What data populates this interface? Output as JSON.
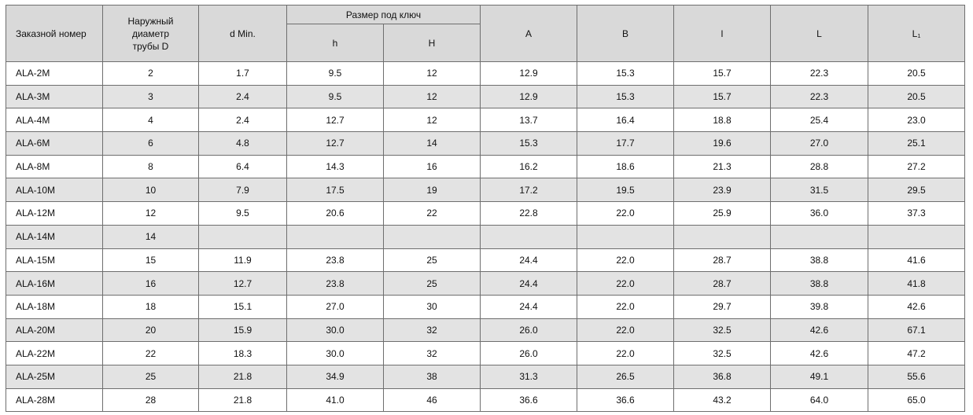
{
  "table": {
    "header": {
      "cells": [
        "Заказной номер",
        "Наружный диаметр трубы D",
        "d Min.",
        "A",
        "B",
        "l",
        "L",
        "L₁"
      ],
      "group": "Размер под ключ",
      "sub": [
        "h",
        "H"
      ]
    },
    "rows": [
      [
        "ALA-2M",
        "2",
        "1.7",
        "9.5",
        "12",
        "12.9",
        "15.3",
        "15.7",
        "22.3",
        "20.5"
      ],
      [
        "ALA-3M",
        "3",
        "2.4",
        "9.5",
        "12",
        "12.9",
        "15.3",
        "15.7",
        "22.3",
        "20.5"
      ],
      [
        "ALA-4M",
        "4",
        "2.4",
        "12.7",
        "12",
        "13.7",
        "16.4",
        "18.8",
        "25.4",
        "23.0"
      ],
      [
        "ALA-6M",
        "6",
        "4.8",
        "12.7",
        "14",
        "15.3",
        "17.7",
        "19.6",
        "27.0",
        "25.1"
      ],
      [
        "ALA-8M",
        "8",
        "6.4",
        "14.3",
        "16",
        "16.2",
        "18.6",
        "21.3",
        "28.8",
        "27.2"
      ],
      [
        "ALA-10M",
        "10",
        "7.9",
        "17.5",
        "19",
        "17.2",
        "19.5",
        "23.9",
        "31.5",
        "29.5"
      ],
      [
        "ALA-12M",
        "12",
        "9.5",
        "20.6",
        "22",
        "22.8",
        "22.0",
        "25.9",
        "36.0",
        "37.3"
      ],
      [
        "ALA-14M",
        "14",
        null,
        null,
        null,
        null,
        null,
        null,
        null,
        null
      ],
      [
        "ALA-15M",
        "15",
        "11.9",
        "23.8",
        "25",
        "24.4",
        "22.0",
        "28.7",
        "38.8",
        "41.6"
      ],
      [
        "ALA-16M",
        "16",
        "12.7",
        "23.8",
        "25",
        "24.4",
        "22.0",
        "28.7",
        "38.8",
        "41.8"
      ],
      [
        "ALA-18M",
        "18",
        "15.1",
        "27.0",
        "30",
        "24.4",
        "22.0",
        "29.7",
        "39.8",
        "42.6"
      ],
      [
        "ALA-20M",
        "20",
        "15.9",
        "30.0",
        "32",
        "26.0",
        "22.0",
        "32.5",
        "42.6",
        "67.1"
      ],
      [
        "ALA-22M",
        "22",
        "18.3",
        "30.0",
        "32",
        "26.0",
        "22.0",
        "32.5",
        "42.6",
        "47.2"
      ],
      [
        "ALA-25M",
        "25",
        "21.8",
        "34.9",
        "38",
        "31.3",
        "26.5",
        "36.8",
        "49.1",
        "55.6"
      ],
      [
        "ALA-28M",
        "28",
        "21.8",
        "41.0",
        "46",
        "36.6",
        "36.6",
        "43.2",
        "64.0",
        "65.0"
      ]
    ]
  }
}
